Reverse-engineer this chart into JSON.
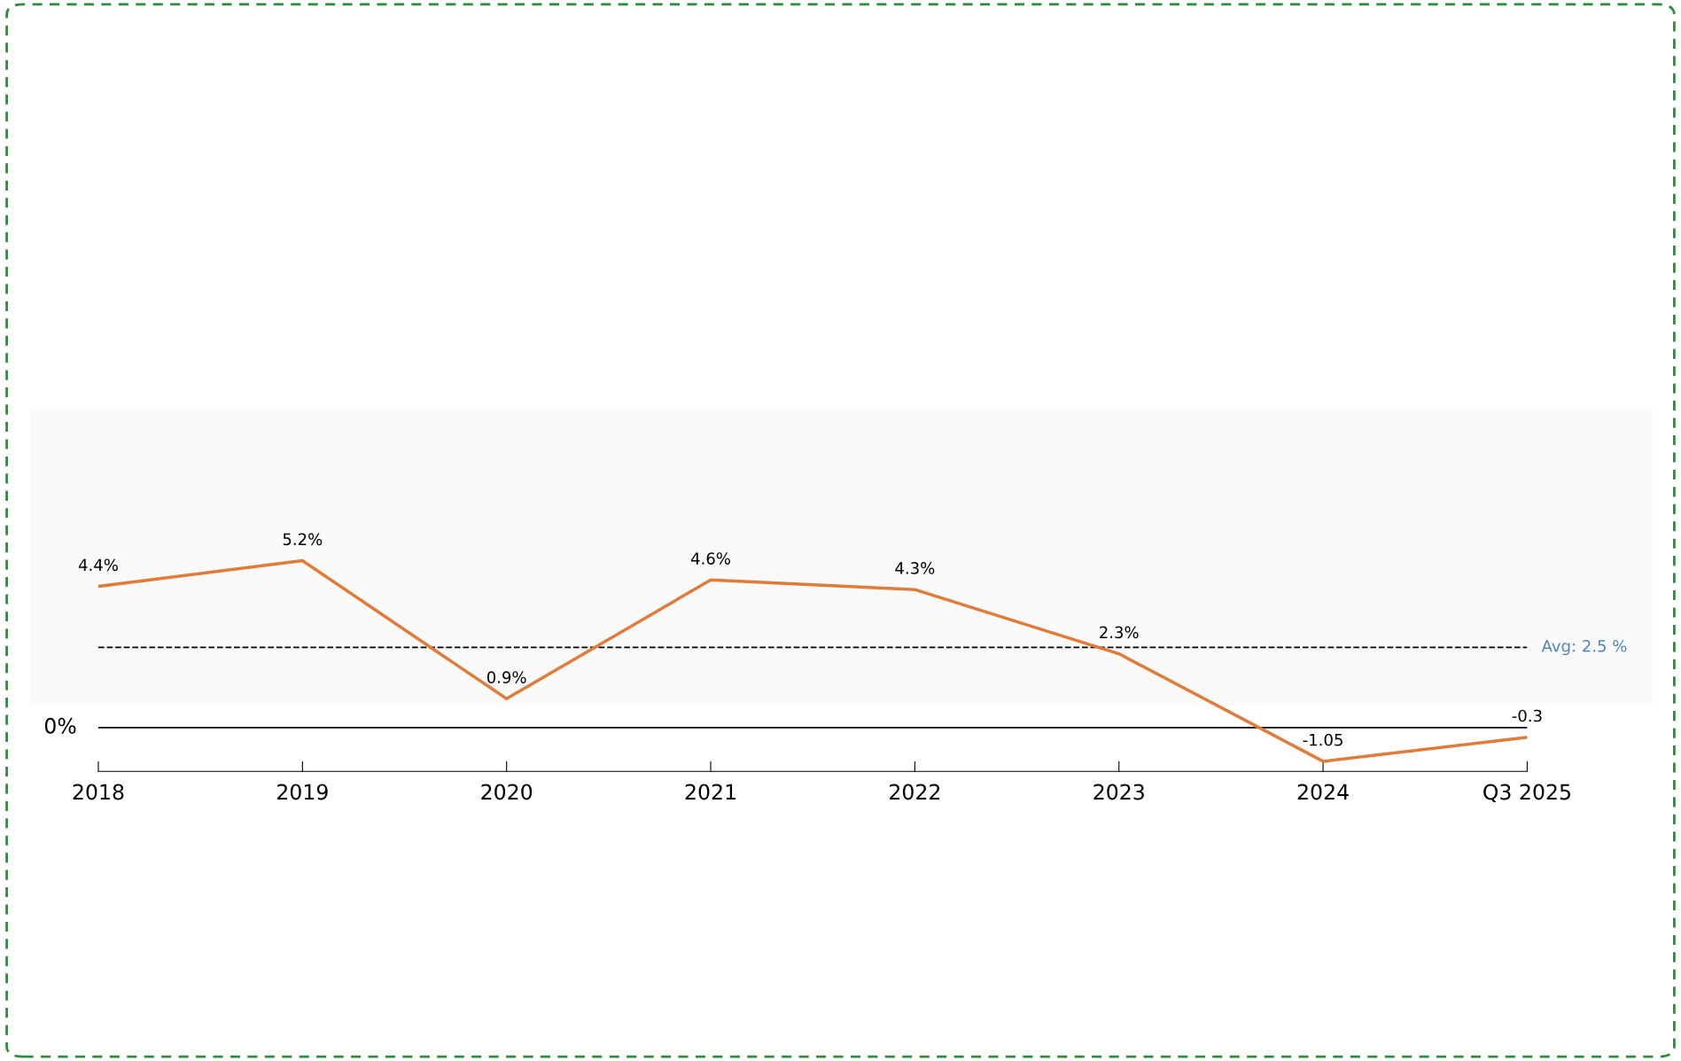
{
  "chart_data": {
    "type": "line",
    "categories": [
      "2018",
      "2019",
      "2020",
      "2021",
      "2022",
      "2023",
      "2024",
      "Q3 2025"
    ],
    "series": [
      {
        "color": "#e07b39",
        "values": [
          4.4,
          5.2,
          0.9,
          4.6,
          4.3,
          2.3,
          -1.05,
          -0.3
        ],
        "value_labels": [
          "4.4%",
          "5.2%",
          "0.9%",
          "4.6%",
          "4.3%",
          "2.3%",
          "-1.05",
          "-0.3"
        ]
      }
    ],
    "annotations": [
      "0%"
    ],
    "ref_lines": [
      {
        "axis": "y",
        "value": 0,
        "color": "#000000",
        "line_style": "solid"
      },
      {
        "axis": "y",
        "value": 2.5,
        "label": "Avg: 2.5 %",
        "color": "#000000",
        "line_style": "dashed"
      }
    ],
    "grid": false,
    "legend": false,
    "marker": "none",
    "line_style": "solid"
  }
}
